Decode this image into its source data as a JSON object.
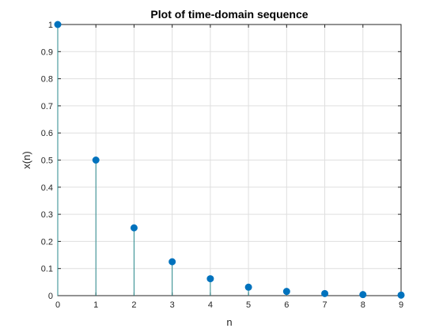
{
  "chart_data": {
    "type": "stem",
    "title": "Plot of time-domain sequence",
    "xlabel": "n",
    "ylabel": "x(n)",
    "x": [
      0,
      1,
      2,
      3,
      4,
      5,
      6,
      7,
      8,
      9
    ],
    "values": [
      1,
      0.5,
      0.25,
      0.125,
      0.0625,
      0.03125,
      0.015625,
      0.0078125,
      0.00390625,
      0.001953125
    ],
    "xlim": [
      0,
      9
    ],
    "ylim": [
      0,
      1
    ],
    "xticks": [
      "0",
      "1",
      "2",
      "3",
      "4",
      "5",
      "6",
      "7",
      "8",
      "9"
    ],
    "yticks": [
      "0",
      "0.1",
      "0.2",
      "0.3",
      "0.4",
      "0.5",
      "0.6",
      "0.7",
      "0.8",
      "0.9",
      "1"
    ],
    "grid": true,
    "stem_color": "#2a8a8c",
    "marker_color": "#0072bd",
    "grid_color": "#dfdfdf",
    "axis_color": "#262626"
  }
}
